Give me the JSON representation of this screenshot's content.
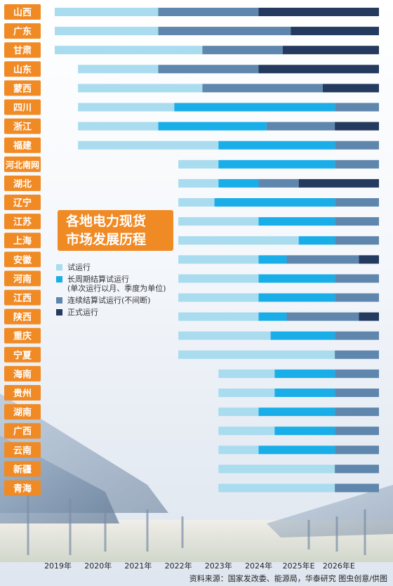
{
  "colors": {
    "trial": "#a9dcef",
    "long_cycle": "#1aaee8",
    "continuous": "#5f86ad",
    "formal": "#243a5e",
    "province_label_bg": "#f08a24",
    "title_bg": "#f08a24"
  },
  "title_lines": [
    "各地电力现货",
    "市场发展历程"
  ],
  "legend": [
    {
      "key": "trial",
      "label": "试运行"
    },
    {
      "key": "long_cycle",
      "label": "长周期结算试运行",
      "note": "(单次运行以月、季度为单位)"
    },
    {
      "key": "continuous",
      "label": "连续结算试运行(不间断)"
    },
    {
      "key": "formal",
      "label": "正式运行"
    }
  ],
  "source": "资料来源：国家发改委、能源局，华泰研究  图虫创意/供图",
  "chart_data": {
    "type": "bar",
    "orientation": "horizontal-timeline",
    "x_axis_labels": [
      "2019年",
      "2020年",
      "2021年",
      "2022年",
      "2023年",
      "2024年",
      "2025年E",
      "2026年E"
    ],
    "x_axis_positions": [
      2019,
      2020,
      2021,
      2022,
      2023,
      2024,
      2025,
      2026
    ],
    "xlim": [
      2018.92,
      2027.0
    ],
    "stages": [
      "trial",
      "long_cycle",
      "continuous",
      "formal"
    ],
    "provinces": [
      {
        "name": "山西",
        "segments": [
          [
            "trial",
            2018.92,
            2021.5
          ],
          [
            "continuous",
            2021.5,
            2024.0
          ],
          [
            "formal",
            2024.0,
            2027.0
          ]
        ]
      },
      {
        "name": "广东",
        "segments": [
          [
            "trial",
            2018.92,
            2021.5
          ],
          [
            "continuous",
            2021.5,
            2024.8
          ],
          [
            "formal",
            2024.8,
            2027.0
          ]
        ]
      },
      {
        "name": "甘肃",
        "segments": [
          [
            "trial",
            2018.92,
            2022.6
          ],
          [
            "continuous",
            2022.6,
            2024.6
          ],
          [
            "formal",
            2024.6,
            2027.0
          ]
        ]
      },
      {
        "name": "山东",
        "segments": [
          [
            "trial",
            2019.5,
            2021.5
          ],
          [
            "continuous",
            2021.5,
            2024.0
          ],
          [
            "formal",
            2024.0,
            2027.0
          ]
        ]
      },
      {
        "name": "蒙西",
        "segments": [
          [
            "trial",
            2019.5,
            2022.6
          ],
          [
            "continuous",
            2022.6,
            2025.6
          ],
          [
            "formal",
            2025.6,
            2027.0
          ]
        ]
      },
      {
        "name": "四川",
        "segments": [
          [
            "trial",
            2019.5,
            2021.9
          ],
          [
            "long_cycle",
            2021.9,
            2025.9
          ],
          [
            "continuous",
            2025.9,
            2027.0
          ]
        ]
      },
      {
        "name": "浙江",
        "segments": [
          [
            "trial",
            2019.5,
            2021.5
          ],
          [
            "long_cycle",
            2021.5,
            2024.2
          ],
          [
            "continuous",
            2024.2,
            2025.9
          ],
          [
            "formal",
            2025.9,
            2027.0
          ]
        ]
      },
      {
        "name": "福建",
        "segments": [
          [
            "trial",
            2019.5,
            2023.0
          ],
          [
            "long_cycle",
            2023.0,
            2025.9
          ],
          [
            "continuous",
            2025.9,
            2027.0
          ]
        ]
      },
      {
        "name": "河北南网",
        "segments": [
          [
            "trial",
            2022.0,
            2023.0
          ],
          [
            "long_cycle",
            2023.0,
            2025.9
          ],
          [
            "continuous",
            2025.9,
            2027.0
          ]
        ]
      },
      {
        "name": "湖北",
        "segments": [
          [
            "trial",
            2022.0,
            2023.0
          ],
          [
            "long_cycle",
            2023.0,
            2024.0
          ],
          [
            "continuous",
            2024.0,
            2025.0
          ],
          [
            "formal",
            2025.0,
            2027.0
          ]
        ]
      },
      {
        "name": "辽宁",
        "segments": [
          [
            "trial",
            2022.0,
            2022.9
          ],
          [
            "long_cycle",
            2022.9,
            2025.9
          ],
          [
            "continuous",
            2025.9,
            2027.0
          ]
        ]
      },
      {
        "name": "江苏",
        "segments": [
          [
            "trial",
            2022.0,
            2024.0
          ],
          [
            "long_cycle",
            2024.0,
            2025.9
          ],
          [
            "continuous",
            2025.9,
            2027.0
          ]
        ]
      },
      {
        "name": "上海",
        "segments": [
          [
            "trial",
            2022.0,
            2025.0
          ],
          [
            "long_cycle",
            2025.0,
            2025.9
          ],
          [
            "continuous",
            2025.9,
            2027.0
          ]
        ]
      },
      {
        "name": "安徽",
        "segments": [
          [
            "trial",
            2022.0,
            2024.0
          ],
          [
            "long_cycle",
            2024.0,
            2024.7
          ],
          [
            "continuous",
            2024.7,
            2026.5
          ],
          [
            "formal",
            2026.5,
            2027.0
          ]
        ]
      },
      {
        "name": "河南",
        "segments": [
          [
            "trial",
            2022.0,
            2024.0
          ],
          [
            "long_cycle",
            2024.0,
            2025.9
          ],
          [
            "continuous",
            2025.9,
            2027.0
          ]
        ]
      },
      {
        "name": "江西",
        "segments": [
          [
            "trial",
            2022.0,
            2024.0
          ],
          [
            "long_cycle",
            2024.0,
            2025.9
          ],
          [
            "continuous",
            2025.9,
            2027.0
          ]
        ]
      },
      {
        "name": "陕西",
        "segments": [
          [
            "trial",
            2022.0,
            2024.0
          ],
          [
            "long_cycle",
            2024.0,
            2024.7
          ],
          [
            "continuous",
            2024.7,
            2026.5
          ],
          [
            "formal",
            2026.5,
            2027.0
          ]
        ]
      },
      {
        "name": "重庆",
        "segments": [
          [
            "trial",
            2022.0,
            2024.3
          ],
          [
            "long_cycle",
            2024.3,
            2025.9
          ],
          [
            "continuous",
            2025.9,
            2027.0
          ]
        ]
      },
      {
        "name": "宁夏",
        "segments": [
          [
            "trial",
            2022.0,
            2025.9
          ],
          [
            "continuous",
            2025.9,
            2027.0
          ]
        ]
      },
      {
        "name": "海南",
        "segments": [
          [
            "trial",
            2023.0,
            2024.4
          ],
          [
            "long_cycle",
            2024.4,
            2025.9
          ],
          [
            "continuous",
            2025.9,
            2027.0
          ]
        ]
      },
      {
        "name": "贵州",
        "segments": [
          [
            "trial",
            2023.0,
            2024.4
          ],
          [
            "long_cycle",
            2024.4,
            2025.9
          ],
          [
            "continuous",
            2025.9,
            2027.0
          ]
        ]
      },
      {
        "name": "湖南",
        "segments": [
          [
            "trial",
            2023.0,
            2024.0
          ],
          [
            "long_cycle",
            2024.0,
            2025.9
          ],
          [
            "continuous",
            2025.9,
            2027.0
          ]
        ]
      },
      {
        "name": "广西",
        "segments": [
          [
            "trial",
            2023.0,
            2024.4
          ],
          [
            "long_cycle",
            2024.4,
            2025.9
          ],
          [
            "continuous",
            2025.9,
            2027.0
          ]
        ]
      },
      {
        "name": "云南",
        "segments": [
          [
            "trial",
            2023.0,
            2024.0
          ],
          [
            "long_cycle",
            2024.0,
            2025.9
          ],
          [
            "continuous",
            2025.9,
            2027.0
          ]
        ]
      },
      {
        "name": "新疆",
        "segments": [
          [
            "trial",
            2023.0,
            2025.9
          ],
          [
            "continuous",
            2025.9,
            2027.0
          ]
        ]
      },
      {
        "name": "青海",
        "segments": [
          [
            "trial",
            2023.0,
            2025.9
          ],
          [
            "continuous",
            2025.9,
            2027.0
          ]
        ]
      }
    ]
  }
}
